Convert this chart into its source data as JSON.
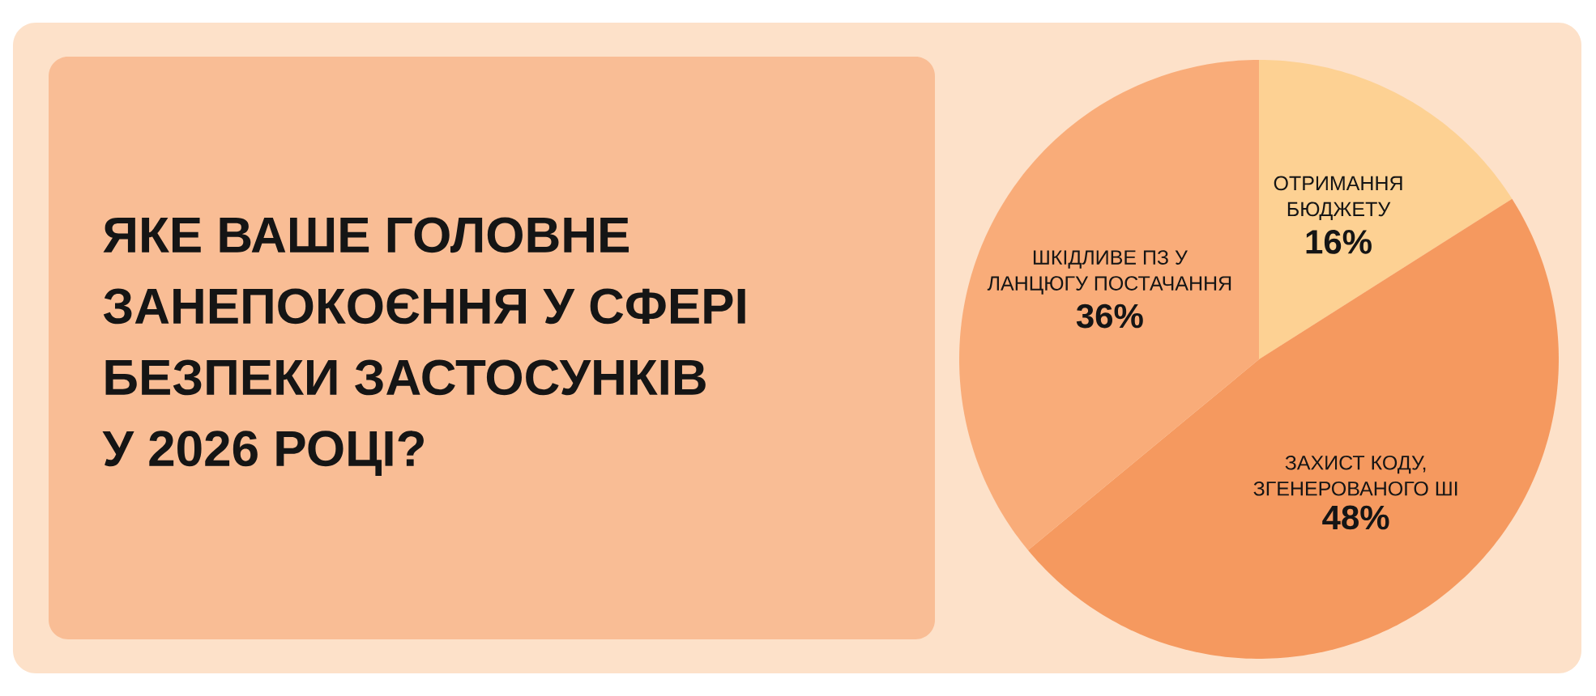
{
  "chart_data": {
    "type": "pie",
    "title": "ЯКЕ ВАШЕ ГОЛОВНЕ ЗАНЕПОКОЄННЯ У СФЕРІ БЕЗПЕКИ ЗАСТОСУНКІВ У 2026 РОЦІ?",
    "categories": [
      "ОТРИМАННЯ БЮДЖЕТУ",
      "ЗАХИСТ КОДУ, ЗГЕНЕРОВАНОГО ШІ",
      "ШКІДЛИВЕ ПЗ У ЛАНЦЮГУ ПОСТАЧАННЯ"
    ],
    "values": [
      16,
      48,
      36
    ],
    "colors": [
      "#fdd193",
      "#f5995f",
      "#f9ac79"
    ],
    "value_labels": [
      "16%",
      "48%",
      "36%"
    ]
  }
}
